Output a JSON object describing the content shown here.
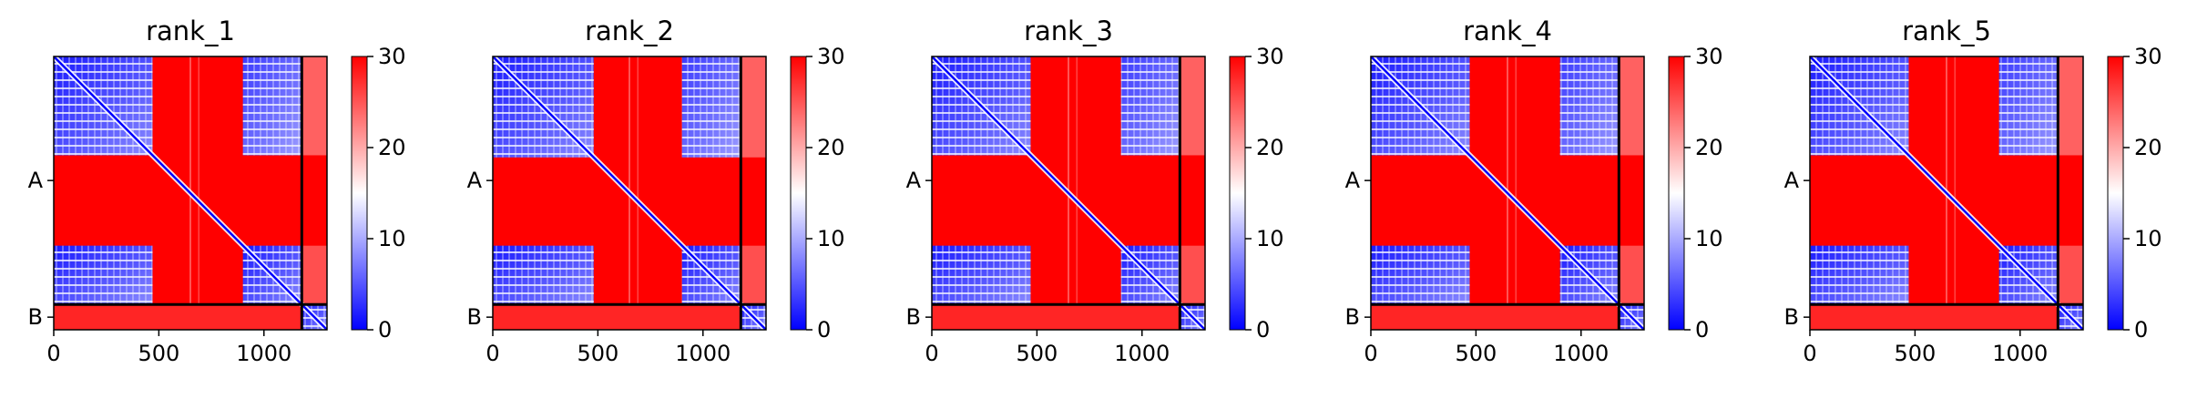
{
  "figure": {
    "colors": {
      "low": "#0000ff",
      "mid": "#ffffff",
      "high": "#ff0000",
      "frame": "#000000"
    }
  },
  "chart_data": [
    {
      "type": "heatmap",
      "title": "rank_1",
      "chains": [
        "A",
        "B"
      ],
      "chain_boundary": 1180,
      "residue_count": 1300,
      "xticks": [
        0,
        500,
        1000
      ],
      "colorbar": {
        "min": 0,
        "max": 30,
        "ticks": [
          0,
          10,
          20,
          30
        ]
      },
      "blocks": {
        "a1": [
          0,
          470
        ],
        "a2": [
          470,
          900
        ],
        "a3": [
          900,
          1180
        ],
        "b": [
          1180,
          1300
        ]
      }
    },
    {
      "type": "heatmap",
      "title": "rank_2",
      "chains": [
        "A",
        "B"
      ],
      "chain_boundary": 1180,
      "residue_count": 1300,
      "xticks": [
        0,
        500,
        1000
      ],
      "colorbar": {
        "min": 0,
        "max": 30,
        "ticks": [
          0,
          10,
          20,
          30
        ]
      },
      "blocks": {
        "a1": [
          0,
          480
        ],
        "a2": [
          480,
          900
        ],
        "a3": [
          900,
          1180
        ],
        "b": [
          1180,
          1300
        ]
      }
    },
    {
      "type": "heatmap",
      "title": "rank_3",
      "chains": [
        "A",
        "B"
      ],
      "chain_boundary": 1180,
      "residue_count": 1300,
      "xticks": [
        0,
        500,
        1000
      ],
      "colorbar": {
        "min": 0,
        "max": 30,
        "ticks": [
          0,
          10,
          20,
          30
        ]
      },
      "blocks": {
        "a1": [
          0,
          470
        ],
        "a2": [
          470,
          900
        ],
        "a3": [
          900,
          1180
        ],
        "b": [
          1180,
          1300
        ]
      }
    },
    {
      "type": "heatmap",
      "title": "rank_4",
      "chains": [
        "A",
        "B"
      ],
      "chain_boundary": 1180,
      "residue_count": 1300,
      "xticks": [
        0,
        500,
        1000
      ],
      "colorbar": {
        "min": 0,
        "max": 30,
        "ticks": [
          0,
          10,
          20,
          30
        ]
      },
      "blocks": {
        "a1": [
          0,
          470
        ],
        "a2": [
          470,
          900
        ],
        "a3": [
          900,
          1180
        ],
        "b": [
          1180,
          1300
        ]
      }
    },
    {
      "type": "heatmap",
      "title": "rank_5",
      "chains": [
        "A",
        "B"
      ],
      "chain_boundary": 1180,
      "residue_count": 1300,
      "xticks": [
        0,
        500,
        1000
      ],
      "colorbar": {
        "min": 0,
        "max": 30,
        "ticks": [
          0,
          10,
          20,
          30
        ]
      },
      "blocks": {
        "a1": [
          0,
          470
        ],
        "a2": [
          470,
          900
        ],
        "a3": [
          900,
          1180
        ],
        "b": [
          1180,
          1300
        ]
      }
    }
  ]
}
